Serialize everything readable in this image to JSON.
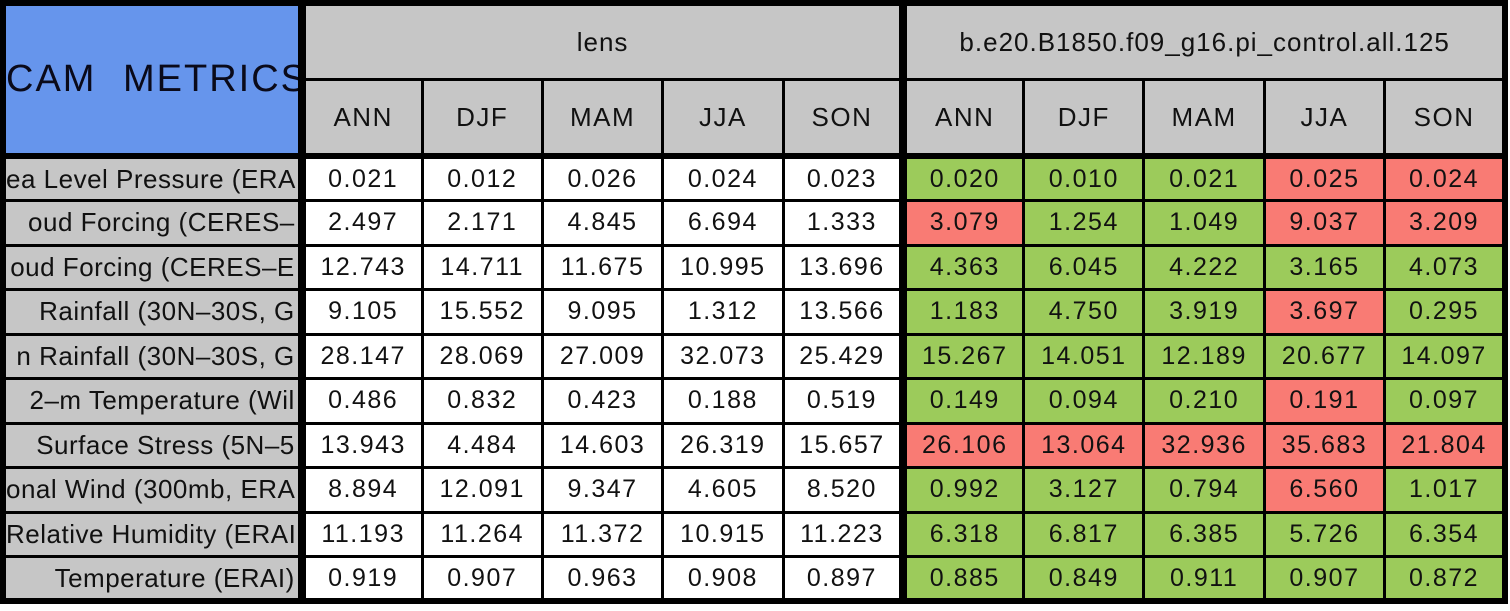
{
  "chart_data": {
    "type": "table",
    "title": "CAM METRICS",
    "column_groups": [
      "lens",
      "b.e20.B1850.f09_g16.pi_control.all.125"
    ],
    "seasons": [
      "ANN",
      "DJF",
      "MAM",
      "JJA",
      "SON"
    ],
    "legend_note_colors": {
      "title_bg": "#6695EC",
      "header_bg": "#C6C6C6",
      "better": "#9CCB5B",
      "worse": "#F97B74",
      "neutral": "#FFFFFF",
      "border": "#000000"
    },
    "rows": [
      {
        "label": "ea Level Pressure (ERA",
        "lens": [
          "0.021",
          "0.012",
          "0.026",
          "0.024",
          "0.023"
        ],
        "case": [
          "0.020",
          "0.010",
          "0.021",
          "0.025",
          "0.024"
        ],
        "case_status": [
          "better",
          "better",
          "better",
          "worse",
          "worse"
        ]
      },
      {
        "label": "oud Forcing (CERES–",
        "lens": [
          "2.497",
          "2.171",
          "4.845",
          "6.694",
          "1.333"
        ],
        "case": [
          "3.079",
          "1.254",
          "1.049",
          "9.037",
          "3.209"
        ],
        "case_status": [
          "worse",
          "better",
          "better",
          "worse",
          "worse"
        ]
      },
      {
        "label": "oud Forcing (CERES–E",
        "lens": [
          "12.743",
          "14.711",
          "11.675",
          "10.995",
          "13.696"
        ],
        "case": [
          "4.363",
          "6.045",
          "4.222",
          "3.165",
          "4.073"
        ],
        "case_status": [
          "better",
          "better",
          "better",
          "better",
          "better"
        ]
      },
      {
        "label": "Rainfall (30N–30S, G",
        "lens": [
          "9.105",
          "15.552",
          "9.095",
          "1.312",
          "13.566"
        ],
        "case": [
          "1.183",
          "4.750",
          "3.919",
          "3.697",
          "0.295"
        ],
        "case_status": [
          "better",
          "better",
          "better",
          "worse",
          "better"
        ]
      },
      {
        "label": "n Rainfall (30N–30S, G",
        "lens": [
          "28.147",
          "28.069",
          "27.009",
          "32.073",
          "25.429"
        ],
        "case": [
          "15.267",
          "14.051",
          "12.189",
          "20.677",
          "14.097"
        ],
        "case_status": [
          "better",
          "better",
          "better",
          "better",
          "better"
        ]
      },
      {
        "label": "2–m Temperature (Wil",
        "lens": [
          "0.486",
          "0.832",
          "0.423",
          "0.188",
          "0.519"
        ],
        "case": [
          "0.149",
          "0.094",
          "0.210",
          "0.191",
          "0.097"
        ],
        "case_status": [
          "better",
          "better",
          "better",
          "worse",
          "better"
        ]
      },
      {
        "label": "Surface Stress (5N–5",
        "lens": [
          "13.943",
          "4.484",
          "14.603",
          "26.319",
          "15.657"
        ],
        "case": [
          "26.106",
          "13.064",
          "32.936",
          "35.683",
          "21.804"
        ],
        "case_status": [
          "worse",
          "worse",
          "worse",
          "worse",
          "worse"
        ]
      },
      {
        "label": "onal Wind (300mb, ERA",
        "lens": [
          "8.894",
          "12.091",
          "9.347",
          "4.605",
          "8.520"
        ],
        "case": [
          "0.992",
          "3.127",
          "0.794",
          "6.560",
          "1.017"
        ],
        "case_status": [
          "better",
          "better",
          "better",
          "worse",
          "better"
        ]
      },
      {
        "label": "Relative Humidity (ERAI",
        "lens": [
          "11.193",
          "11.264",
          "11.372",
          "10.915",
          "11.223"
        ],
        "case": [
          "6.318",
          "6.817",
          "6.385",
          "5.726",
          "6.354"
        ],
        "case_status": [
          "better",
          "better",
          "better",
          "better",
          "better"
        ]
      },
      {
        "label": "Temperature (ERAI)",
        "lens": [
          "0.919",
          "0.907",
          "0.963",
          "0.908",
          "0.897"
        ],
        "case": [
          "0.885",
          "0.849",
          "0.911",
          "0.907",
          "0.872"
        ],
        "case_status": [
          "better",
          "better",
          "better",
          "better",
          "better"
        ]
      }
    ]
  }
}
